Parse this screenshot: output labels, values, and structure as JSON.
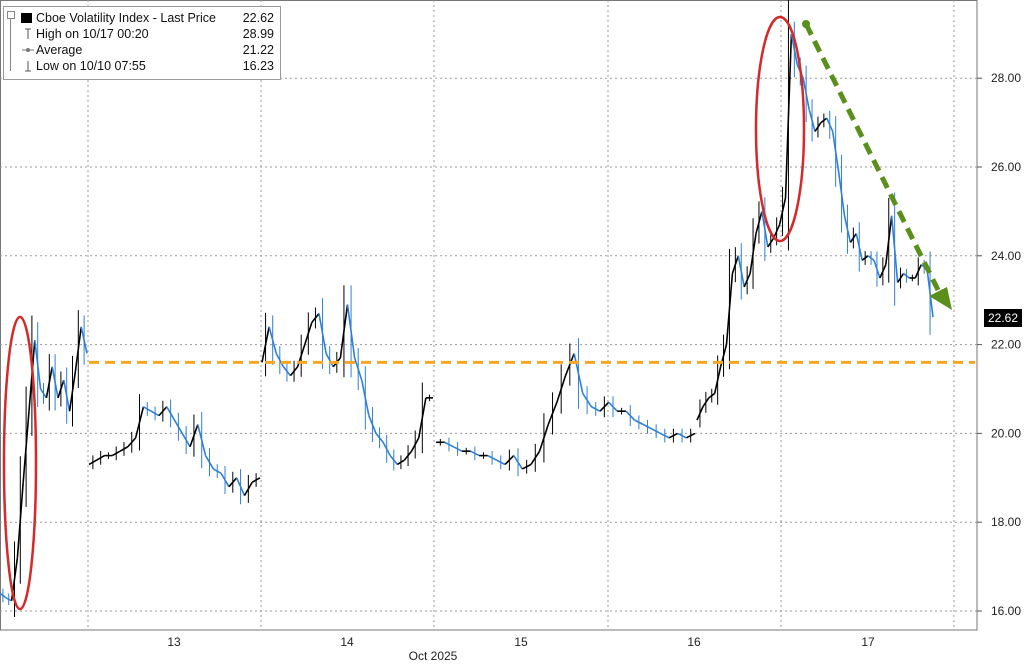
{
  "legend": {
    "series_label": "Cboe Volatility Index - Last Price",
    "series_value": "22.62",
    "high_label": "High on 10/17 00:20",
    "high_value": "28.99",
    "avg_label": "Average",
    "avg_value": "21.22",
    "low_label": "Low on 10/10 07:55",
    "low_value": "16.23"
  },
  "last_price_tag": "22.62",
  "colors": {
    "series_up": "#000000",
    "series_down": "#2f7fd6",
    "average_line": "#f5a623",
    "trend_arrow": "#5a8f1c",
    "highlight_ellipse": "#d42a2a",
    "grid": "#9a9a9a"
  },
  "chart_data": {
    "type": "line",
    "title": "Cboe Volatility Index - Last Price",
    "xlabel": "Oct 2025",
    "ylabel": "",
    "ylim": [
      15.7,
      29.8
    ],
    "y_ticks": [
      "16.00",
      "18.00",
      "20.00",
      "22.00",
      "24.00",
      "26.00",
      "28.00"
    ],
    "x_ticks": [
      "13",
      "14",
      "15",
      "16",
      "17"
    ],
    "x_axis_title": "Oct 2025",
    "grid": true,
    "legend_position": "top-left",
    "average": 21.22,
    "last": 22.62,
    "high": 28.99,
    "low": 16.23,
    "sessions": [
      {
        "day": "10/10",
        "values": [
          16.4,
          16.3,
          16.23,
          17.2,
          18.9,
          20.5,
          22.1,
          21.0,
          20.8,
          21.5,
          20.8,
          21.2,
          20.5,
          21.4,
          22.4,
          21.8
        ]
      },
      {
        "day": "10/13",
        "values": [
          19.3,
          19.4,
          19.5,
          19.5,
          19.6,
          19.7,
          19.9,
          20.6,
          20.5,
          20.4,
          20.6,
          20.3,
          20.0,
          19.7,
          20.2,
          19.5,
          19.2,
          19.1,
          18.8,
          19.0,
          18.6,
          18.9,
          19.0
        ]
      },
      {
        "day": "10/14",
        "values": [
          21.6,
          22.4,
          21.8,
          21.5,
          21.3,
          21.5,
          22.0,
          22.5,
          22.7,
          21.8,
          21.5,
          21.7,
          22.9,
          21.7,
          21.2,
          20.4,
          20.0,
          19.8,
          19.5,
          19.3,
          19.4,
          19.6,
          19.9,
          20.8,
          20.8
        ]
      },
      {
        "day": "10/15",
        "values": [
          19.8,
          19.8,
          19.7,
          19.6,
          19.6,
          19.5,
          19.5,
          19.4,
          19.3,
          19.5,
          19.2,
          19.3,
          19.6,
          20.2,
          20.7,
          21.3,
          21.8,
          20.9,
          20.6,
          20.5,
          20.7,
          20.5,
          20.5,
          20.3,
          20.2,
          20.1,
          20.0,
          19.9,
          20.0,
          19.9,
          20.0
        ]
      },
      {
        "day": "10/16",
        "values": [
          20.3,
          20.6,
          20.8,
          20.9,
          21.5,
          22.0,
          23.6,
          24.0,
          23.3,
          23.6,
          24.5,
          25.0,
          24.2,
          24.4,
          24.7,
          25.3,
          28.99,
          28.3,
          28.0,
          27.3,
          26.8,
          27.0,
          27.1,
          26.8,
          25.9,
          24.9,
          24.3,
          24.5,
          23.9,
          24.0,
          23.9,
          23.5,
          23.8,
          24.9,
          23.4,
          23.6,
          23.5,
          23.5,
          23.8,
          23.7,
          22.62
        ]
      }
    ],
    "session_x_end": [
      "10/13",
      "10/14",
      "10/15",
      "10/16",
      "10/17"
    ]
  }
}
